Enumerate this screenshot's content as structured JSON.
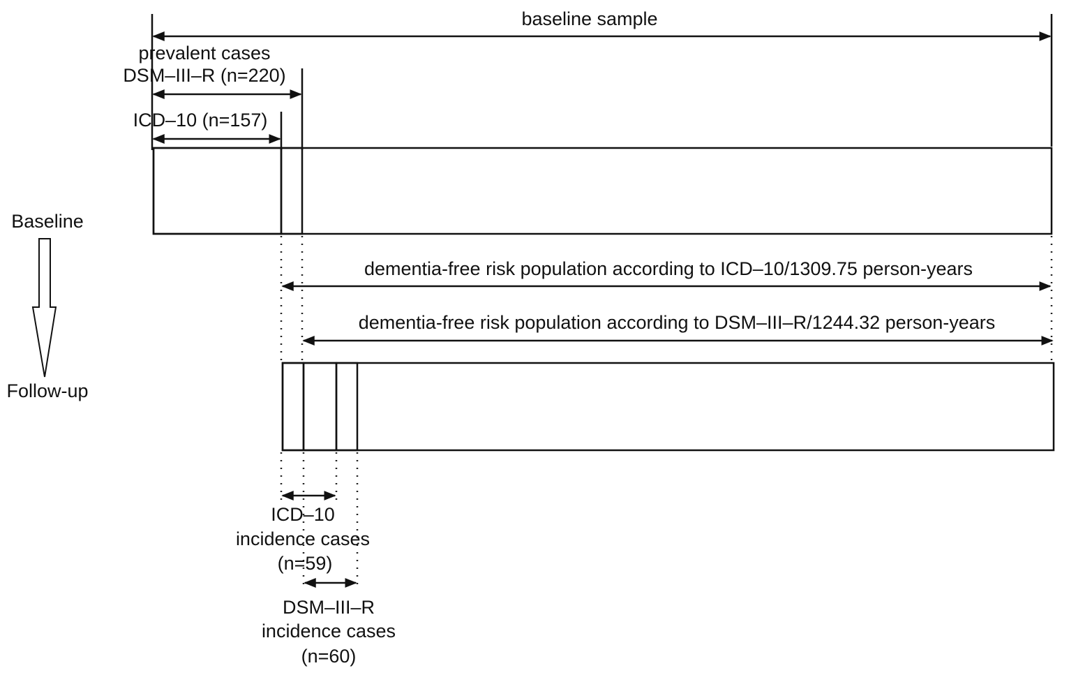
{
  "top": {
    "baseline_sample": "baseline sample",
    "prevalent_title": "prevalent cases",
    "prevalent_dsm": "DSM–III–R (n=220)",
    "prevalent_icd": "ICD–10 (n=157)"
  },
  "timeline": {
    "baseline": "Baseline",
    "follow_up": "Follow-up"
  },
  "risk": {
    "icd": "dementia-free risk population according to ICD–10/1309.75 person-years",
    "dsm": "dementia-free risk population according to DSM–III–R/1244.32 person-years"
  },
  "incidence": {
    "icd_line1": "ICD–10",
    "icd_line2": "incidence cases",
    "icd_line3": "(n=59)",
    "dsm_line1": "DSM–III–R",
    "dsm_line2": "incidence cases",
    "dsm_line3": "(n=60)"
  },
  "colors": {
    "icd_cases": "#bdbdbd",
    "dsm_only_cases": "#d8d8d8",
    "icd_incidence": "#8c8c8c"
  }
}
